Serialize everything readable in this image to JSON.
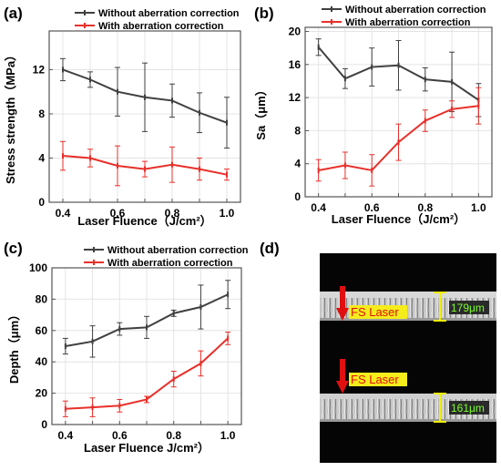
{
  "colors": {
    "without": "#404040",
    "with": "#e8302a",
    "arrow": "#e01010",
    "bracket": "#f0f000",
    "micro_bg": "#050505",
    "micro_band": "#c8c8c8"
  },
  "legend": {
    "without": "Without aberration correction",
    "with": "With aberration correction"
  },
  "chart_data": [
    {
      "type": "line",
      "panel_label": "(a)",
      "xlabel": "Laser Fluence（J/cm²）",
      "ylabel": "Stress strength（MPa）",
      "xlim": [
        0.35,
        1.05
      ],
      "ylim": [
        0,
        15.5
      ],
      "xticks": [
        0.4,
        0.6,
        0.8,
        1.0
      ],
      "xtick_labels": [
        "0.4",
        "0.6",
        "0.8",
        "1.0"
      ],
      "yticks": [
        0,
        4,
        8,
        12
      ],
      "ytick_labels": [
        "0",
        "4",
        "8",
        "12"
      ],
      "grid": true,
      "legend_position": "top",
      "x": [
        0.4,
        0.5,
        0.6,
        0.7,
        0.8,
        0.9,
        1.0
      ],
      "series": [
        {
          "name": "Without aberration correction",
          "values": [
            12.0,
            11.1,
            10.0,
            9.5,
            9.2,
            8.1,
            7.2
          ],
          "err": [
            1.0,
            0.7,
            2.2,
            3.1,
            1.5,
            1.8,
            2.3
          ]
        },
        {
          "name": "With aberration correction",
          "values": [
            4.2,
            4.0,
            3.3,
            3.0,
            3.4,
            3.0,
            2.5
          ],
          "err": [
            1.3,
            0.8,
            1.8,
            0.7,
            1.6,
            1.0,
            0.5
          ]
        }
      ]
    },
    {
      "type": "line",
      "panel_label": "(b)",
      "xlabel": "Laser Fluence（J/cm²）",
      "ylabel": "Sa（μm）",
      "xlim": [
        0.35,
        1.05
      ],
      "ylim": [
        0,
        20.5
      ],
      "xticks": [
        0.4,
        0.6,
        0.8,
        1.0
      ],
      "xtick_labels": [
        "0.4",
        "0.6",
        "0.8",
        "1.0"
      ],
      "yticks": [
        0,
        4,
        8,
        12,
        16,
        20
      ],
      "ytick_labels": [
        "0",
        "4",
        "8",
        "12",
        "16",
        "20"
      ],
      "grid": true,
      "legend_position": "top",
      "x": [
        0.4,
        0.5,
        0.6,
        0.7,
        0.8,
        0.9,
        1.0
      ],
      "series": [
        {
          "name": "Without aberration correction",
          "values": [
            18.1,
            14.3,
            15.7,
            15.9,
            14.2,
            13.9,
            11.7
          ],
          "err": [
            1.0,
            1.2,
            2.3,
            3.0,
            1.4,
            3.6,
            2.0
          ]
        },
        {
          "name": "With aberration correction",
          "values": [
            3.2,
            3.8,
            3.2,
            6.6,
            9.2,
            10.6,
            11.0
          ],
          "err": [
            1.3,
            1.6,
            1.9,
            2.2,
            1.3,
            1.0,
            2.2
          ]
        }
      ]
    },
    {
      "type": "line",
      "panel_label": "(c)",
      "xlabel": "Laser Fluence  J/cm²）",
      "ylabel": "Depth（μm）",
      "xlim": [
        0.35,
        1.05
      ],
      "ylim": [
        0,
        100
      ],
      "xticks": [
        0.4,
        0.6,
        0.8,
        1.0
      ],
      "xtick_labels": [
        "0.4",
        "0.6",
        "0.8",
        "1.0"
      ],
      "yticks": [
        0,
        20,
        40,
        60,
        80,
        100
      ],
      "ytick_labels": [
        "0",
        "20",
        "40",
        "60",
        "80",
        "100"
      ],
      "grid": true,
      "legend_position": "top",
      "x": [
        0.4,
        0.5,
        0.6,
        0.7,
        0.8,
        0.9,
        1.0
      ],
      "series": [
        {
          "name": "Without aberration correction",
          "values": [
            50,
            53,
            61,
            62,
            71,
            75,
            83
          ],
          "err": [
            5,
            10,
            4,
            7,
            2,
            14,
            9
          ]
        },
        {
          "name": "With aberration correction",
          "values": [
            10,
            11,
            12,
            16,
            29,
            39,
            55
          ],
          "err": [
            5,
            6,
            4,
            2,
            5,
            8,
            4
          ]
        }
      ]
    }
  ],
  "micrograph": {
    "panel_label": "(d)",
    "top": {
      "laser_label": "FS Laser",
      "width_label": "179μm"
    },
    "bottom": {
      "laser_label": "FS Laser",
      "width_label": "161μm"
    }
  }
}
